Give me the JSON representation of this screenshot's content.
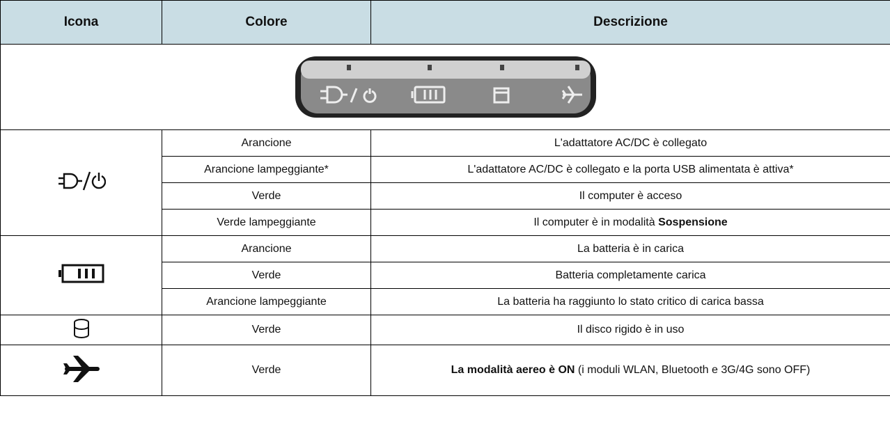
{
  "header": {
    "icon": "Icona",
    "color": "Colore",
    "description": "Descrizione"
  },
  "groups": [
    {
      "rows": [
        {
          "color": "Arancione",
          "description": "L'adattatore AC/DC è collegato"
        },
        {
          "color": "Arancione lampeggiante*",
          "description": "L'adattatore AC/DC è collegato e la porta USB alimentata è attiva*"
        },
        {
          "color": "Verde",
          "description": "Il computer è acceso"
        },
        {
          "color": "Verde lampeggiante",
          "description": "Il computer è in modalità",
          "bold": "Sospensione"
        }
      ]
    },
    {
      "rows": [
        {
          "color": "Arancione",
          "description": "La batteria è in carica"
        },
        {
          "color": "Verde",
          "description": "Batteria completamente carica"
        },
        {
          "color": "Arancione lampeggiante",
          "description": "La batteria ha raggiunto lo stato critico di carica bassa"
        }
      ]
    },
    {
      "rows": [
        {
          "color": "Verde",
          "description": "Il disco rigido è in uso"
        }
      ]
    },
    {
      "rows": [
        {
          "bold_first": "La modalità aereo è ON",
          "color": "Verde",
          "description": "(i moduli WLAN, Bluetooth e 3G/4G sono OFF)"
        }
      ]
    }
  ]
}
